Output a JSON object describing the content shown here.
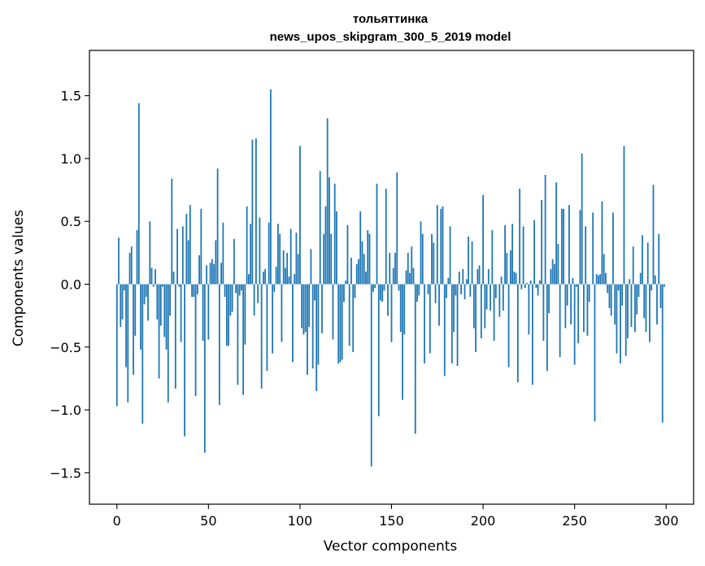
{
  "chart_data": {
    "type": "bar",
    "title": "тольяттинка",
    "subtitle": "news_upos_skipgram_300_5_2019 model",
    "xlabel": "Vector components",
    "ylabel": "Components values",
    "xlim": [
      -15,
      315
    ],
    "ylim": [
      -1.75,
      1.86
    ],
    "xticks": [
      0,
      50,
      100,
      150,
      200,
      250,
      300
    ],
    "yticks": [
      -1.5,
      -1.0,
      -0.5,
      0.0,
      0.5,
      1.0,
      1.5
    ],
    "xtick_labels": [
      "0",
      "50",
      "100",
      "150",
      "200",
      "250",
      "300"
    ],
    "ytick_labels": [
      "−1.5",
      "−1.0",
      "−0.5",
      "0.0",
      "0.5",
      "1.0",
      "1.5"
    ],
    "bar_color": "#1f77b4",
    "values": [
      -0.97,
      0.37,
      -0.34,
      -0.28,
      -0.05,
      -0.66,
      -0.94,
      0.25,
      0.3,
      -0.72,
      -0.41,
      0.43,
      1.44,
      -0.52,
      -1.11,
      -0.16,
      -0.1,
      -0.29,
      0.5,
      0.13,
      -0.02,
      0.12,
      -0.28,
      -0.75,
      -0.33,
      -0.02,
      -0.42,
      -0.52,
      -0.94,
      -0.25,
      0.84,
      0.1,
      -0.83,
      0.44,
      -0.02,
      -0.46,
      0.46,
      -1.21,
      0.56,
      0.35,
      0.63,
      -0.1,
      -0.1,
      -0.89,
      -0.08,
      0.23,
      0.6,
      -0.45,
      -1.34,
      0.15,
      -0.44,
      0.17,
      0.2,
      0.16,
      0.35,
      0.92,
      -0.96,
      0.17,
      0.49,
      -0.1,
      -0.49,
      -0.49,
      -0.25,
      -0.22,
      0.36,
      -0.07,
      -0.8,
      -0.09,
      -0.05,
      -0.88,
      -0.48,
      0.62,
      0.08,
      0.48,
      1.15,
      -0.25,
      1.16,
      -0.15,
      0.53,
      -0.83,
      0.1,
      0.12,
      -0.69,
      0.49,
      1.55,
      -0.55,
      -0.06,
      0.14,
      0.48,
      0.4,
      -0.46,
      0.27,
      0.13,
      0.25,
      0.06,
      0.44,
      -0.62,
      0.08,
      0.41,
      0.24,
      1.1,
      -0.35,
      -0.4,
      -0.38,
      -0.72,
      -0.34,
      0.28,
      -0.67,
      -0.13,
      -0.85,
      -0.64,
      0.9,
      -0.39,
      0.4,
      0.62,
      1.32,
      0.85,
      0.4,
      -0.44,
      0.8,
      0.58,
      -0.63,
      -0.62,
      -0.6,
      -0.14,
      0.03,
      0.47,
      -0.49,
      0.21,
      -0.54,
      -0.11,
      0.16,
      0.2,
      0.58,
      0.34,
      0.24,
      0.1,
      0.43,
      0.4,
      -1.45,
      -0.06,
      -0.03,
      0.8,
      -1.05,
      -0.13,
      -0.14,
      -0.05,
      0.76,
      -0.25,
      0.25,
      -0.46,
      0.13,
      0.25,
      0.89,
      -0.05,
      -0.38,
      -0.92,
      -0.4,
      0.11,
      0.25,
      0.09,
      0.3,
      0.13,
      -1.19,
      -0.14,
      -0.09,
      0.5,
      0.4,
      -0.63,
      0.0,
      -0.08,
      -0.55,
      0.4,
      0.33,
      -0.15,
      0.63,
      -0.33,
      0.6,
      0.62,
      -0.73,
      -0.11,
      0.05,
      0.46,
      -0.63,
      -0.38,
      -0.09,
      -0.65,
      0.1,
      -0.08,
      0.12,
      -0.12,
      0.04,
      0.38,
      -0.1,
      0.34,
      -0.35,
      -0.54,
      0.12,
      0.15,
      -0.43,
      0.71,
      -0.35,
      -0.2,
      0.12,
      -0.21,
      0.43,
      -0.45,
      -0.11,
      0.0,
      -0.26,
      0.06,
      -0.21,
      0.47,
      0.25,
      -0.66,
      0.27,
      0.48,
      0.1,
      0.09,
      -0.78,
      0.76,
      -0.04,
      0.46,
      -0.03,
      0.01,
      -0.4,
      0.03,
      -0.8,
      0.51,
      -0.03,
      -0.09,
      0.03,
      0.67,
      -0.45,
      0.87,
      -0.69,
      -0.23,
      0.12,
      0.2,
      0.16,
      0.81,
      0.32,
      -0.58,
      0.6,
      0.6,
      -0.35,
      -0.17,
      0.63,
      -0.32,
      0.05,
      -0.64,
      -0.02,
      -0.47,
      0.59,
      1.04,
      -0.38,
      0.46,
      -0.41,
      -0.14,
      0.0,
      0.57,
      -1.09,
      0.08,
      0.07,
      0.08,
      0.66,
      0.24,
      0.09,
      -0.07,
      -0.19,
      -0.25,
      0.57,
      -0.32,
      -0.55,
      -0.05,
      -0.63,
      -0.17,
      1.1,
      -0.57,
      -0.43,
      0.04,
      -0.34,
      0.3,
      -0.38,
      -0.24,
      -0.1,
      0.09,
      0.39,
      -0.27,
      -0.38,
      0.33,
      -0.46,
      -0.05,
      0.79,
      0.07,
      -0.32,
      0.4,
      -0.19,
      -1.1,
      -0.02
    ]
  }
}
